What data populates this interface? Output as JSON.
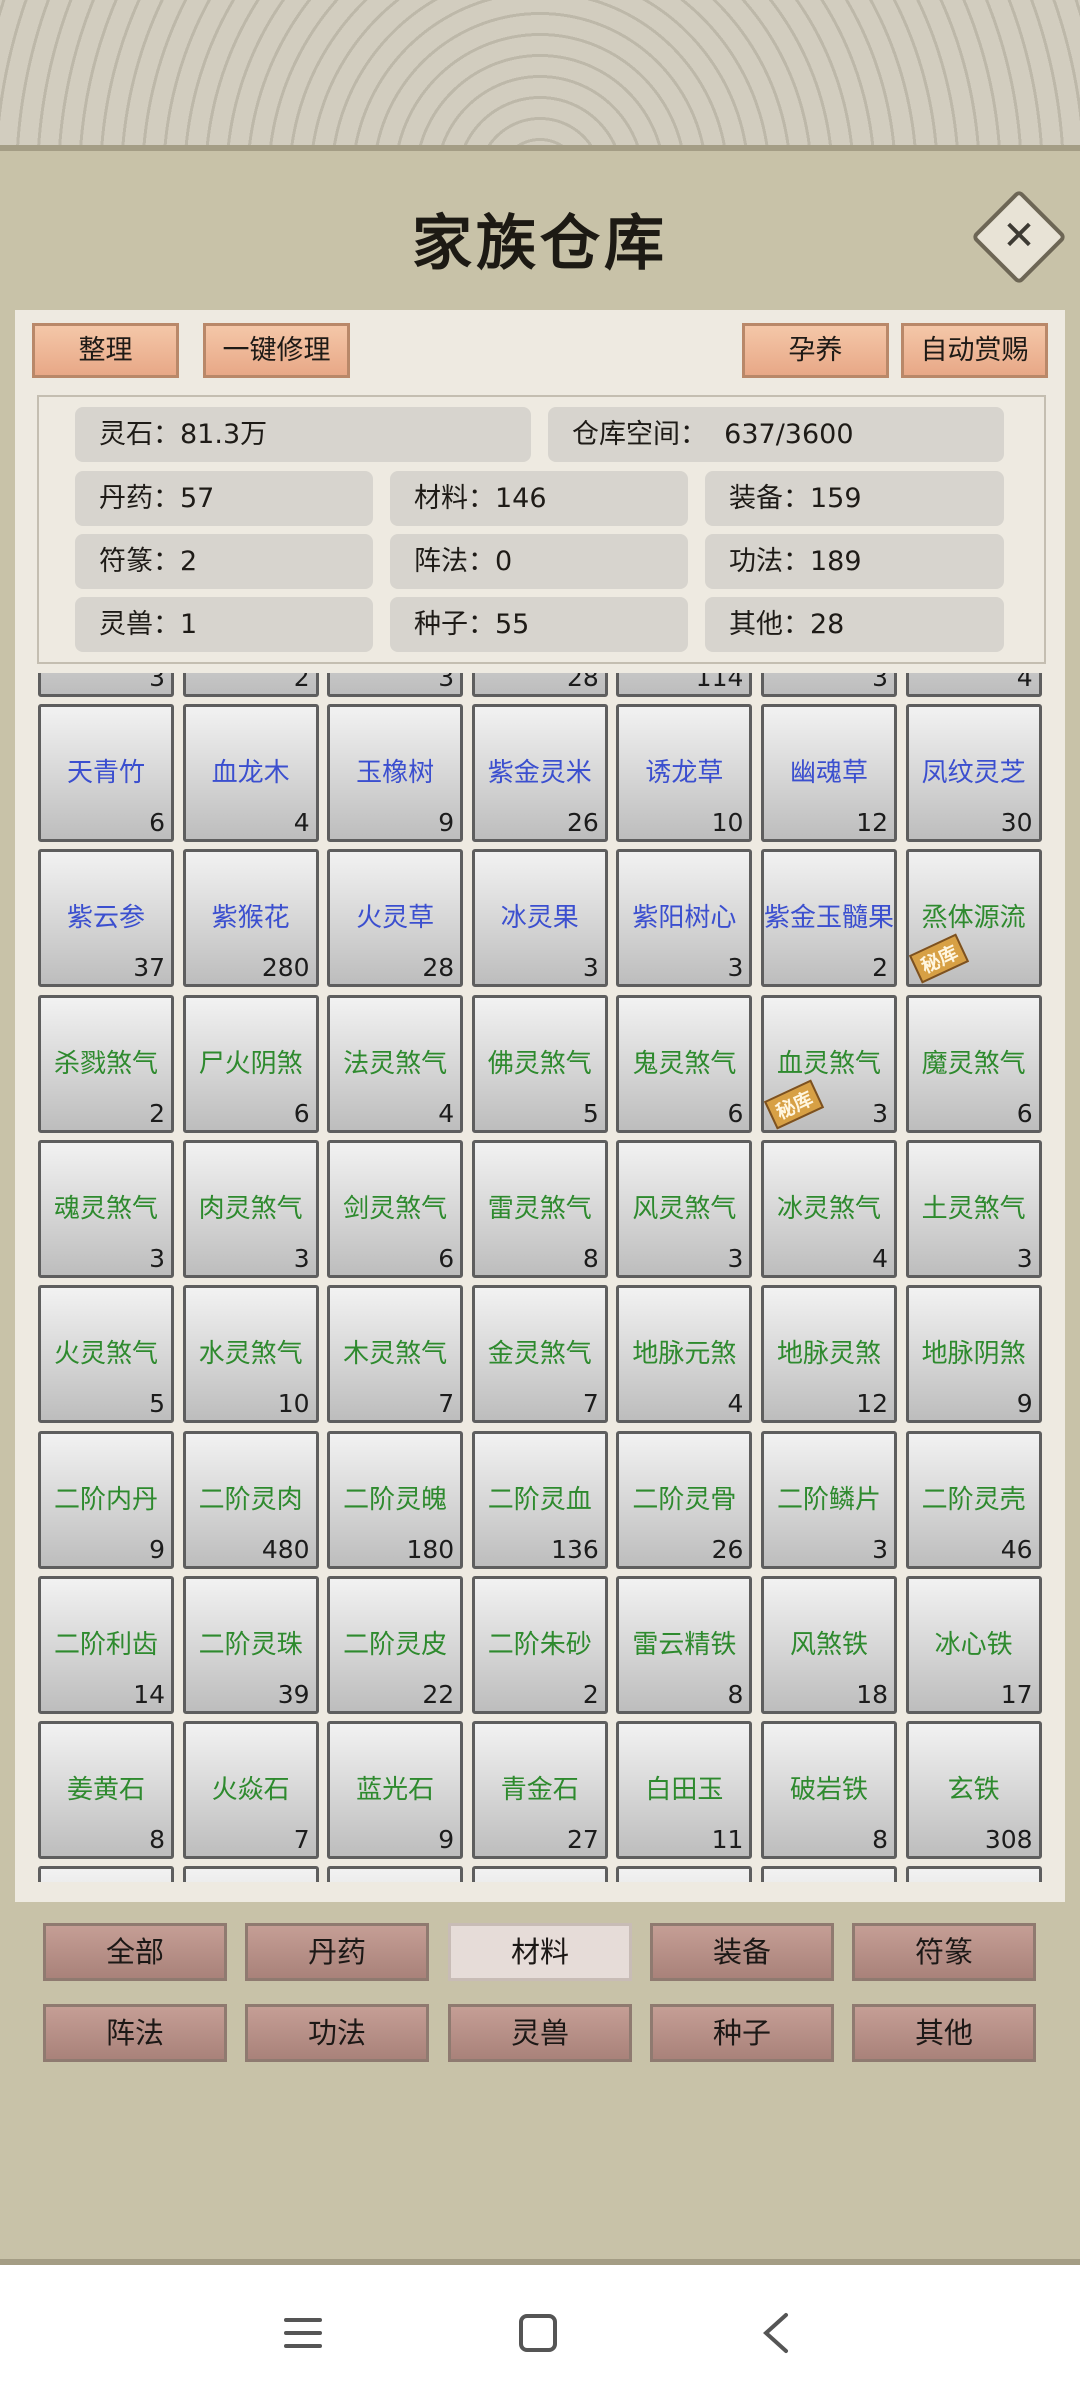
{
  "header": {
    "title": "家族仓库"
  },
  "toolbar": [
    "整理",
    "一键修理",
    "孕养",
    "自动赏赐"
  ],
  "stats": [
    [
      {
        "label": "灵石：",
        "value": "81.3万"
      },
      {
        "label": "仓库空间：  ",
        "value": "637/3600"
      }
    ],
    [
      {
        "label": "丹药：",
        "value": "57"
      },
      {
        "label": "材料：",
        "value": "146"
      },
      {
        "label": "装备：",
        "value": "159"
      }
    ],
    [
      {
        "label": "符篆：",
        "value": "2"
      },
      {
        "label": "阵法：",
        "value": "0"
      },
      {
        "label": "功法：",
        "value": "189"
      }
    ],
    [
      {
        "label": "灵兽：",
        "value": "1"
      },
      {
        "label": "种子：",
        "value": "55"
      },
      {
        "label": "其他：",
        "value": "28"
      }
    ]
  ],
  "inventory": {
    "partial_top_counts": [
      "3",
      "2",
      "3",
      "28",
      "114",
      "3",
      "4"
    ],
    "rows": [
      [
        {
          "name": "天青竹",
          "count": "6",
          "color": "#3b4fcf"
        },
        {
          "name": "血龙木",
          "count": "4",
          "color": "#3b4fcf"
        },
        {
          "name": "玉橡树",
          "count": "9",
          "color": "#3b4fcf"
        },
        {
          "name": "紫金灵米",
          "count": "26",
          "color": "#3b4fcf"
        },
        {
          "name": "诱龙草",
          "count": "10",
          "color": "#3b4fcf"
        },
        {
          "name": "幽魂草",
          "count": "12",
          "color": "#3b4fcf"
        },
        {
          "name": "凤纹灵芝",
          "count": "30",
          "color": "#3b4fcf"
        }
      ],
      [
        {
          "name": "紫云参",
          "count": "37",
          "color": "#3b4fcf"
        },
        {
          "name": "紫猴花",
          "count": "280",
          "color": "#3b4fcf"
        },
        {
          "name": "火灵草",
          "count": "28",
          "color": "#3b4fcf"
        },
        {
          "name": "冰灵果",
          "count": "3",
          "color": "#3b4fcf"
        },
        {
          "name": "紫阳树心",
          "count": "3",
          "color": "#3b4fcf"
        },
        {
          "name": "紫金玉髓果",
          "count": "2",
          "color": "#3b4fcf"
        },
        {
          "name": "烝体源流",
          "color": "#2e8a2e",
          "tag": "秘库"
        }
      ],
      [
        {
          "name": "杀戮煞气",
          "count": "2",
          "color": "#2e8a2e"
        },
        {
          "name": "尸火阴煞",
          "count": "6",
          "color": "#2e8a2e"
        },
        {
          "name": "法灵煞气",
          "count": "4",
          "color": "#2e8a2e"
        },
        {
          "name": "佛灵煞气",
          "count": "5",
          "color": "#2e8a2e"
        },
        {
          "name": "鬼灵煞气",
          "count": "6",
          "color": "#2e8a2e"
        },
        {
          "name": "血灵煞气",
          "count": "3",
          "color": "#2e8a2e",
          "tag": "秘库"
        },
        {
          "name": "魔灵煞气",
          "count": "6",
          "color": "#2e8a2e"
        }
      ],
      [
        {
          "name": "魂灵煞气",
          "count": "3",
          "color": "#2e8a2e"
        },
        {
          "name": "肉灵煞气",
          "count": "3",
          "color": "#2e8a2e"
        },
        {
          "name": "剑灵煞气",
          "count": "6",
          "color": "#2e8a2e"
        },
        {
          "name": "雷灵煞气",
          "count": "8",
          "color": "#2e8a2e"
        },
        {
          "name": "风灵煞气",
          "count": "3",
          "color": "#2e8a2e"
        },
        {
          "name": "冰灵煞气",
          "count": "4",
          "color": "#2e8a2e"
        },
        {
          "name": "土灵煞气",
          "count": "3",
          "color": "#2e8a2e"
        }
      ],
      [
        {
          "name": "火灵煞气",
          "count": "5",
          "color": "#2e8a2e"
        },
        {
          "name": "水灵煞气",
          "count": "10",
          "color": "#2e8a2e"
        },
        {
          "name": "木灵煞气",
          "count": "7",
          "color": "#2e8a2e"
        },
        {
          "name": "金灵煞气",
          "count": "7",
          "color": "#2e8a2e"
        },
        {
          "name": "地脉元煞",
          "count": "4",
          "color": "#2e8a2e"
        },
        {
          "name": "地脉灵煞",
          "count": "12",
          "color": "#2e8a2e"
        },
        {
          "name": "地脉阴煞",
          "count": "9",
          "color": "#2e8a2e"
        }
      ],
      [
        {
          "name": "二阶内丹",
          "count": "9",
          "color": "#2e8a2e"
        },
        {
          "name": "二阶灵肉",
          "count": "480",
          "color": "#2e8a2e"
        },
        {
          "name": "二阶灵魄",
          "count": "180",
          "color": "#2e8a2e"
        },
        {
          "name": "二阶灵血",
          "count": "136",
          "color": "#2e8a2e"
        },
        {
          "name": "二阶灵骨",
          "count": "26",
          "color": "#2e8a2e"
        },
        {
          "name": "二阶鳞片",
          "count": "3",
          "color": "#2e8a2e"
        },
        {
          "name": "二阶灵壳",
          "count": "46",
          "color": "#2e8a2e"
        }
      ],
      [
        {
          "name": "二阶利齿",
          "count": "14",
          "color": "#2e8a2e"
        },
        {
          "name": "二阶灵珠",
          "count": "39",
          "color": "#2e8a2e"
        },
        {
          "name": "二阶灵皮",
          "count": "22",
          "color": "#2e8a2e"
        },
        {
          "name": "二阶朱砂",
          "count": "2",
          "color": "#2e8a2e"
        },
        {
          "name": "雷云精铁",
          "count": "8",
          "color": "#2e8a2e"
        },
        {
          "name": "风煞铁",
          "count": "18",
          "color": "#2e8a2e"
        },
        {
          "name": "冰心铁",
          "count": "17",
          "color": "#2e8a2e"
        }
      ],
      [
        {
          "name": "姜黄石",
          "count": "8",
          "color": "#2e8a2e"
        },
        {
          "name": "火焱石",
          "count": "7",
          "color": "#2e8a2e"
        },
        {
          "name": "蓝光石",
          "count": "9",
          "color": "#2e8a2e"
        },
        {
          "name": "青金石",
          "count": "27",
          "color": "#2e8a2e"
        },
        {
          "name": "白田玉",
          "count": "11",
          "color": "#2e8a2e"
        },
        {
          "name": "破岩铁",
          "count": "8",
          "color": "#2e8a2e"
        },
        {
          "name": "玄铁",
          "count": "308",
          "color": "#2e8a2e"
        }
      ]
    ]
  },
  "tabs": {
    "items": [
      "全部",
      "丹药",
      "材料",
      "装备",
      "符篆",
      "阵法",
      "功法",
      "灵兽",
      "种子",
      "其他"
    ],
    "active": 2
  }
}
